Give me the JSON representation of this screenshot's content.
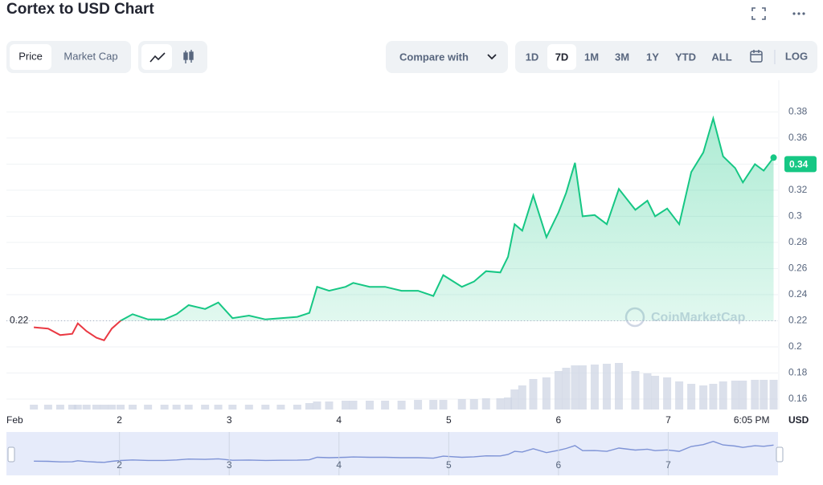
{
  "header": {
    "title": "Cortex to USD Chart"
  },
  "controls": {
    "metric": [
      "Price",
      "Market Cap"
    ],
    "compare": "Compare with",
    "ranges": [
      "1D",
      "7D",
      "1M",
      "3M",
      "1Y",
      "YTD",
      "ALL"
    ],
    "log": "LOG"
  },
  "chart_data": {
    "type": "line",
    "x": [
      1.22,
      1.35,
      1.46,
      1.57,
      1.62,
      1.7,
      1.79,
      1.86,
      1.93,
      2.01,
      2.12,
      2.26,
      2.41,
      2.52,
      2.63,
      2.78,
      2.9,
      3.03,
      3.18,
      3.33,
      3.47,
      3.62,
      3.73,
      3.8,
      3.91,
      4.06,
      4.13,
      4.28,
      4.42,
      4.57,
      4.72,
      4.86,
      4.95,
      5.12,
      5.23,
      5.34,
      5.47,
      5.54,
      5.6,
      5.67,
      5.77,
      5.89,
      6.0,
      6.07,
      6.15,
      6.22,
      6.33,
      6.44,
      6.55,
      6.7,
      6.81,
      6.88,
      6.99,
      7.1,
      7.21,
      7.32,
      7.41,
      7.5,
      7.61,
      7.68,
      7.79,
      7.87,
      7.96
    ],
    "series": [
      {
        "name": "Price",
        "color": "#16c784",
        "down_color": "#ea3943",
        "values": [
          0.215,
          0.214,
          0.209,
          0.21,
          0.218,
          0.212,
          0.207,
          0.205,
          0.214,
          0.22,
          0.225,
          0.221,
          0.221,
          0.225,
          0.232,
          0.229,
          0.234,
          0.222,
          0.224,
          0.221,
          0.222,
          0.223,
          0.226,
          0.246,
          0.243,
          0.246,
          0.249,
          0.246,
          0.246,
          0.243,
          0.243,
          0.239,
          0.255,
          0.246,
          0.25,
          0.258,
          0.257,
          0.269,
          0.294,
          0.289,
          0.316,
          0.284,
          0.303,
          0.318,
          0.341,
          0.3,
          0.301,
          0.294,
          0.321,
          0.305,
          0.312,
          0.3,
          0.306,
          0.294,
          0.334,
          0.349,
          0.375,
          0.346,
          0.337,
          0.326,
          0.34,
          0.335,
          0.345
        ]
      },
      {
        "name": "Volume",
        "color": "#cfd6e4",
        "values": [
          6,
          6,
          6,
          6,
          6,
          6,
          6,
          6,
          6,
          6,
          6,
          6,
          6,
          6,
          6,
          6,
          6,
          6,
          6,
          6,
          6,
          6,
          8,
          10,
          10,
          11,
          11,
          11,
          11,
          11,
          12,
          12,
          12,
          13,
          13,
          14,
          14,
          15,
          25,
          30,
          38,
          40,
          48,
          52,
          55,
          55,
          56,
          57,
          58,
          48,
          45,
          42,
          40,
          35,
          32,
          30,
          32,
          35,
          36,
          36,
          37,
          37,
          37
        ]
      }
    ],
    "reference_price": 0.22,
    "current_price": 0.34,
    "xlim": [
      0.97,
      8.0
    ],
    "xticks": [
      {
        "value": 1,
        "label": "Feb"
      },
      2,
      3,
      4,
      5,
      6,
      7,
      {
        "value": 7.76,
        "label": "6:05 PM"
      }
    ],
    "ylim": [
      0.152,
      0.395
    ],
    "yticks": [
      0.16,
      0.18,
      0.2,
      0.22,
      0.24,
      0.26,
      0.28,
      0.3,
      0.32,
      0.34,
      0.36,
      0.38
    ],
    "y_unit": "USD",
    "watermark": "CoinMarketCap",
    "grid": true
  }
}
